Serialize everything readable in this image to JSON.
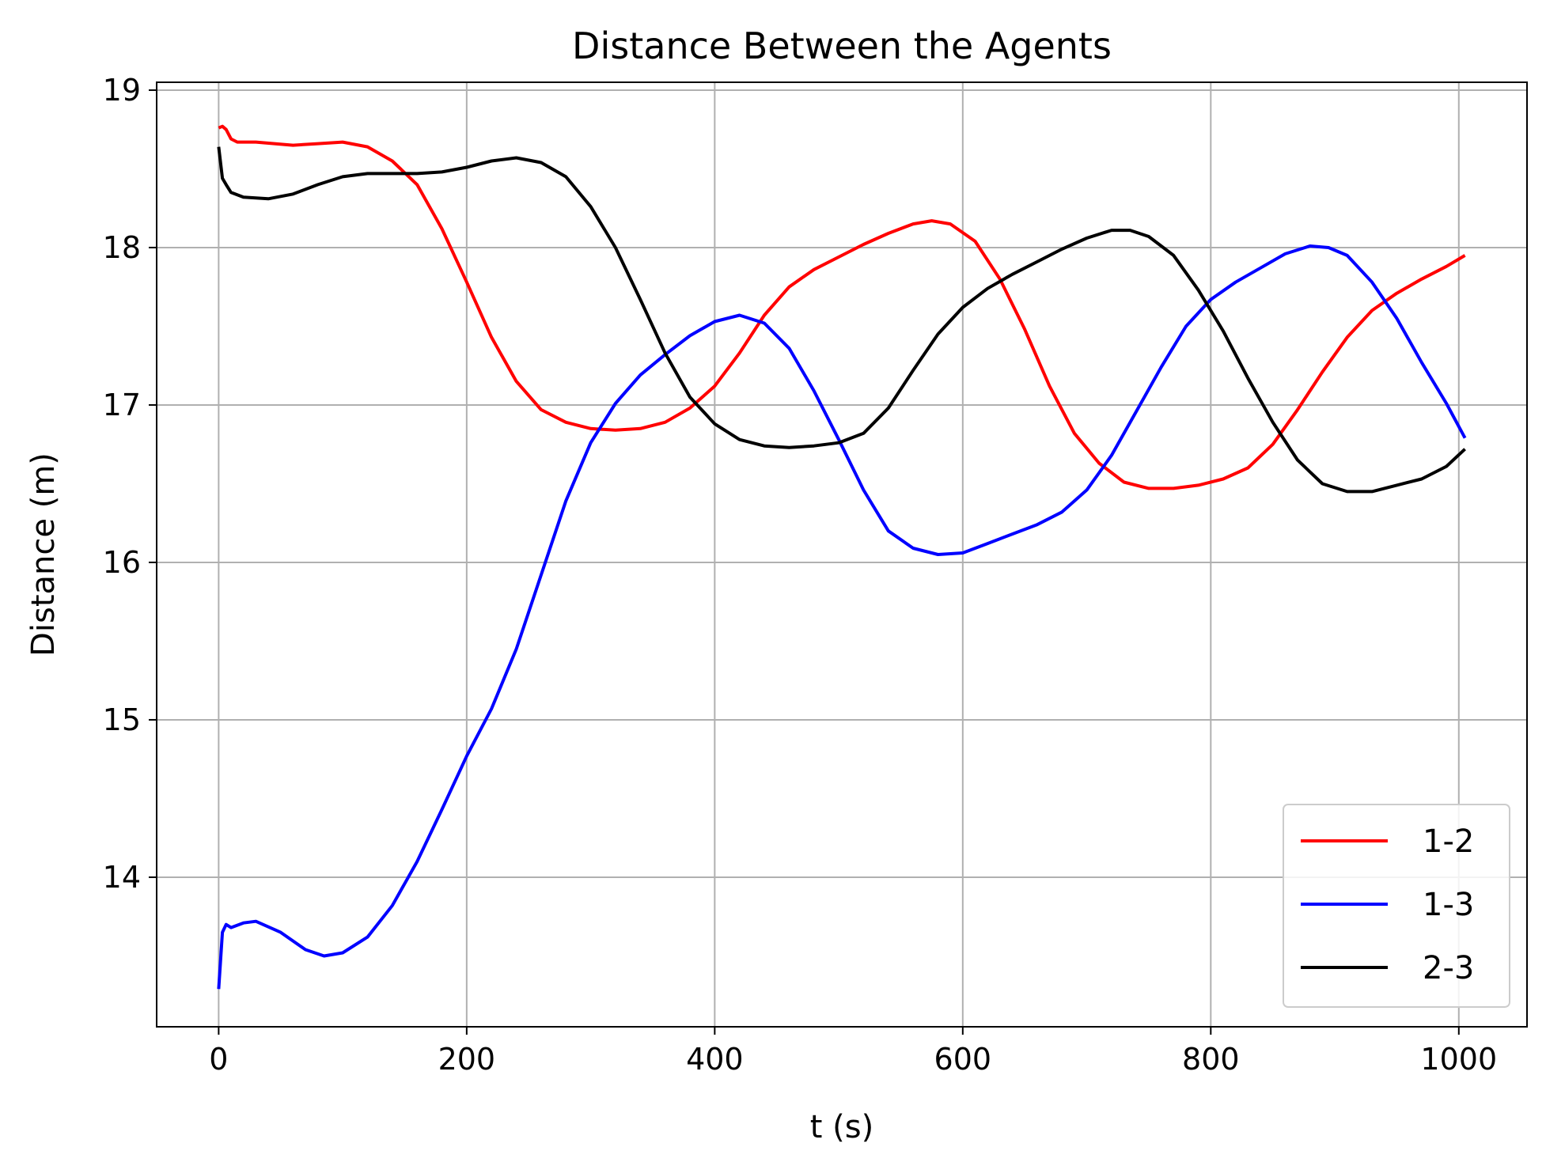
{
  "chart_data": {
    "type": "line",
    "title": "Distance Between the Agents",
    "xlabel": "t (s)",
    "ylabel": "Distance (m)",
    "xlim": [
      -50,
      1055
    ],
    "ylim": [
      13.05,
      19.05
    ],
    "xticks": [
      0,
      200,
      400,
      600,
      800,
      1000
    ],
    "yticks": [
      14,
      15,
      16,
      17,
      18,
      19
    ],
    "grid": true,
    "legend_position": "lower-right",
    "series": [
      {
        "name": "1-2",
        "color": "#ff0000",
        "points": [
          [
            0,
            18.76
          ],
          [
            3,
            18.77
          ],
          [
            6,
            18.75
          ],
          [
            10,
            18.69
          ],
          [
            15,
            18.67
          ],
          [
            30,
            18.67
          ],
          [
            60,
            18.65
          ],
          [
            80,
            18.66
          ],
          [
            100,
            18.67
          ],
          [
            120,
            18.64
          ],
          [
            140,
            18.55
          ],
          [
            160,
            18.4
          ],
          [
            180,
            18.12
          ],
          [
            200,
            17.78
          ],
          [
            220,
            17.43
          ],
          [
            240,
            17.15
          ],
          [
            260,
            16.97
          ],
          [
            280,
            16.89
          ],
          [
            300,
            16.85
          ],
          [
            320,
            16.84
          ],
          [
            340,
            16.85
          ],
          [
            360,
            16.89
          ],
          [
            380,
            16.98
          ],
          [
            400,
            17.12
          ],
          [
            420,
            17.33
          ],
          [
            440,
            17.57
          ],
          [
            460,
            17.75
          ],
          [
            480,
            17.86
          ],
          [
            500,
            17.94
          ],
          [
            520,
            18.02
          ],
          [
            540,
            18.09
          ],
          [
            560,
            18.15
          ],
          [
            575,
            18.17
          ],
          [
            590,
            18.15
          ],
          [
            610,
            18.04
          ],
          [
            630,
            17.8
          ],
          [
            650,
            17.48
          ],
          [
            670,
            17.12
          ],
          [
            690,
            16.82
          ],
          [
            710,
            16.63
          ],
          [
            730,
            16.51
          ],
          [
            750,
            16.47
          ],
          [
            770,
            16.47
          ],
          [
            790,
            16.49
          ],
          [
            810,
            16.53
          ],
          [
            830,
            16.6
          ],
          [
            850,
            16.75
          ],
          [
            870,
            16.97
          ],
          [
            890,
            17.21
          ],
          [
            910,
            17.43
          ],
          [
            930,
            17.6
          ],
          [
            950,
            17.71
          ],
          [
            970,
            17.8
          ],
          [
            990,
            17.88
          ],
          [
            1005,
            17.95
          ]
        ]
      },
      {
        "name": "1-3",
        "color": "#0000ff",
        "points": [
          [
            0,
            13.29
          ],
          [
            3,
            13.65
          ],
          [
            6,
            13.7
          ],
          [
            10,
            13.68
          ],
          [
            20,
            13.71
          ],
          [
            30,
            13.72
          ],
          [
            50,
            13.65
          ],
          [
            70,
            13.54
          ],
          [
            85,
            13.5
          ],
          [
            100,
            13.52
          ],
          [
            120,
            13.62
          ],
          [
            140,
            13.82
          ],
          [
            160,
            14.1
          ],
          [
            180,
            14.43
          ],
          [
            200,
            14.77
          ],
          [
            220,
            15.07
          ],
          [
            240,
            15.45
          ],
          [
            260,
            15.92
          ],
          [
            280,
            16.39
          ],
          [
            300,
            16.76
          ],
          [
            320,
            17.01
          ],
          [
            340,
            17.19
          ],
          [
            360,
            17.32
          ],
          [
            380,
            17.44
          ],
          [
            400,
            17.53
          ],
          [
            420,
            17.57
          ],
          [
            440,
            17.52
          ],
          [
            460,
            17.36
          ],
          [
            480,
            17.09
          ],
          [
            500,
            16.78
          ],
          [
            520,
            16.46
          ],
          [
            540,
            16.2
          ],
          [
            560,
            16.09
          ],
          [
            580,
            16.05
          ],
          [
            600,
            16.06
          ],
          [
            620,
            16.12
          ],
          [
            640,
            16.18
          ],
          [
            660,
            16.24
          ],
          [
            680,
            16.32
          ],
          [
            700,
            16.46
          ],
          [
            720,
            16.68
          ],
          [
            740,
            16.96
          ],
          [
            760,
            17.24
          ],
          [
            780,
            17.5
          ],
          [
            800,
            17.67
          ],
          [
            820,
            17.78
          ],
          [
            840,
            17.87
          ],
          [
            860,
            17.96
          ],
          [
            880,
            18.01
          ],
          [
            895,
            18.0
          ],
          [
            910,
            17.95
          ],
          [
            930,
            17.78
          ],
          [
            950,
            17.55
          ],
          [
            970,
            17.27
          ],
          [
            990,
            17.01
          ],
          [
            1005,
            16.79
          ]
        ]
      },
      {
        "name": "2-3",
        "color": "#000000",
        "points": [
          [
            0,
            18.64
          ],
          [
            3,
            18.44
          ],
          [
            6,
            18.4
          ],
          [
            10,
            18.35
          ],
          [
            20,
            18.32
          ],
          [
            40,
            18.31
          ],
          [
            60,
            18.34
          ],
          [
            80,
            18.4
          ],
          [
            100,
            18.45
          ],
          [
            120,
            18.47
          ],
          [
            140,
            18.47
          ],
          [
            160,
            18.47
          ],
          [
            180,
            18.48
          ],
          [
            200,
            18.51
          ],
          [
            220,
            18.55
          ],
          [
            240,
            18.57
          ],
          [
            260,
            18.54
          ],
          [
            280,
            18.45
          ],
          [
            300,
            18.26
          ],
          [
            320,
            18.0
          ],
          [
            340,
            17.67
          ],
          [
            360,
            17.33
          ],
          [
            380,
            17.05
          ],
          [
            400,
            16.88
          ],
          [
            420,
            16.78
          ],
          [
            440,
            16.74
          ],
          [
            460,
            16.73
          ],
          [
            480,
            16.74
          ],
          [
            500,
            16.76
          ],
          [
            520,
            16.82
          ],
          [
            540,
            16.98
          ],
          [
            560,
            17.22
          ],
          [
            580,
            17.45
          ],
          [
            600,
            17.62
          ],
          [
            620,
            17.74
          ],
          [
            640,
            17.83
          ],
          [
            660,
            17.91
          ],
          [
            680,
            17.99
          ],
          [
            700,
            18.06
          ],
          [
            720,
            18.11
          ],
          [
            735,
            18.11
          ],
          [
            750,
            18.07
          ],
          [
            770,
            17.95
          ],
          [
            790,
            17.73
          ],
          [
            810,
            17.47
          ],
          [
            830,
            17.17
          ],
          [
            850,
            16.89
          ],
          [
            870,
            16.65
          ],
          [
            890,
            16.5
          ],
          [
            910,
            16.45
          ],
          [
            930,
            16.45
          ],
          [
            950,
            16.49
          ],
          [
            970,
            16.53
          ],
          [
            990,
            16.61
          ],
          [
            1005,
            16.72
          ]
        ]
      }
    ]
  }
}
